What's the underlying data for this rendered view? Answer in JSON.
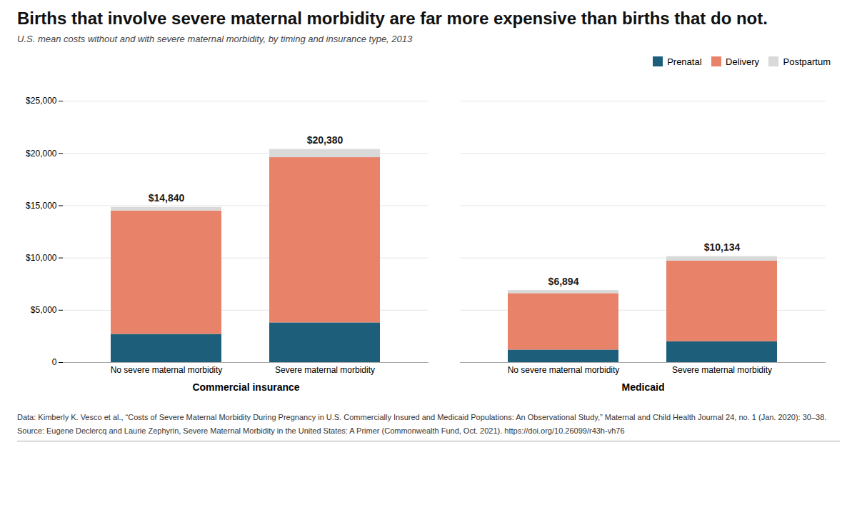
{
  "chart_data": {
    "type": "bar",
    "stacked": true,
    "title": "Births that involve severe maternal morbidity are far more expensive than births that do not.",
    "subtitle": "U.S. mean costs without and with severe maternal morbidity, by timing and insurance type, 2013",
    "categories": [
      "No severe maternal morbidity",
      "Severe maternal morbidity",
      "No severe maternal morbidity",
      "Severe maternal morbidity"
    ],
    "groups": [
      "Commercial insurance",
      "Commercial insurance",
      "Medicaid",
      "Medicaid"
    ],
    "series": [
      {
        "name": "Prenatal",
        "color": "#1d5f7a",
        "values": [
          2700,
          3800,
          1200,
          2000
        ]
      },
      {
        "name": "Delivery",
        "color": "#e8836a",
        "values": [
          11800,
          15800,
          5400,
          7700
        ]
      },
      {
        "name": "Postpartum",
        "color": "#d9d9d9",
        "values": [
          340,
          780,
          294,
          434
        ]
      }
    ],
    "totals": [
      14840,
      20380,
      6894,
      10134
    ],
    "total_labels": [
      "$14,840",
      "$20,380",
      "$6,894",
      "$10,134"
    ],
    "ylim": [
      0,
      25000
    ],
    "yticks": [
      0,
      {
        "value": 5000,
        "label": "$5,000"
      },
      {
        "value": 10000,
        "label": "$10,000"
      },
      {
        "value": 15000,
        "label": "$15,000"
      },
      {
        "value": 20000,
        "label": "$20,000"
      },
      {
        "value": 25000,
        "label": "$25,000"
      }
    ],
    "grid": true,
    "legend": "upper right",
    "annotations": [
      "Data: Kimberly K. Vesco et al., “Costs of Severe Maternal Morbidity During Pregnancy in U.S. Commercially Insured and Medicaid Populations: An Observational Study,” Maternal and Child Health Journal 24, no. 1 (Jan. 2020): 30–38.",
      "Source: Eugene Declercq and Laurie Zephyrin, Severe Maternal Morbidity in the United States: A Primer (Commonwealth Fund, Oct. 2021). https://doi.org/10.26099/r43h-vh76"
    ]
  }
}
